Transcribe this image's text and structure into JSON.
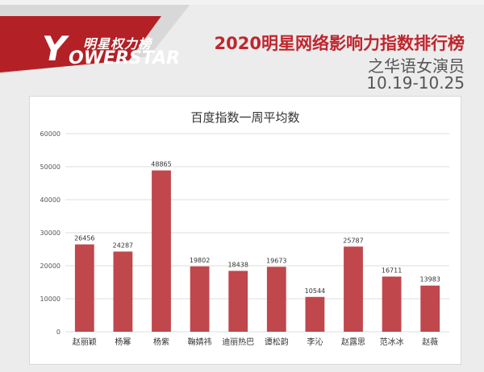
{
  "header": {
    "logo_cn": "明星权力榜",
    "logo_en": "OWERSTAR",
    "logo_mark": "Y",
    "title": "2020明星网络影响力指数排行榜",
    "subtitle": "之华语女演员",
    "date_range": "10.19-10.25"
  },
  "colors": {
    "bar": "#c0474c",
    "brand_red": "#c0262e",
    "grid": "#dcdcdc"
  },
  "chart_data": {
    "type": "bar",
    "title": "百度指数一周平均数",
    "categories": [
      "赵丽颖",
      "杨幂",
      "杨紫",
      "鞠婧祎",
      "迪丽热巴",
      "谭松韵",
      "李沁",
      "赵露思",
      "范冰冰",
      "赵薇"
    ],
    "values": [
      26456,
      24287,
      48865,
      19802,
      18438,
      19673,
      10544,
      25787,
      16711,
      13983
    ],
    "ylim": [
      0,
      60000
    ],
    "yticks": [
      0,
      10000,
      20000,
      30000,
      40000,
      50000,
      60000
    ],
    "grid": true,
    "data_labels": true,
    "xlabel": "",
    "ylabel": ""
  }
}
